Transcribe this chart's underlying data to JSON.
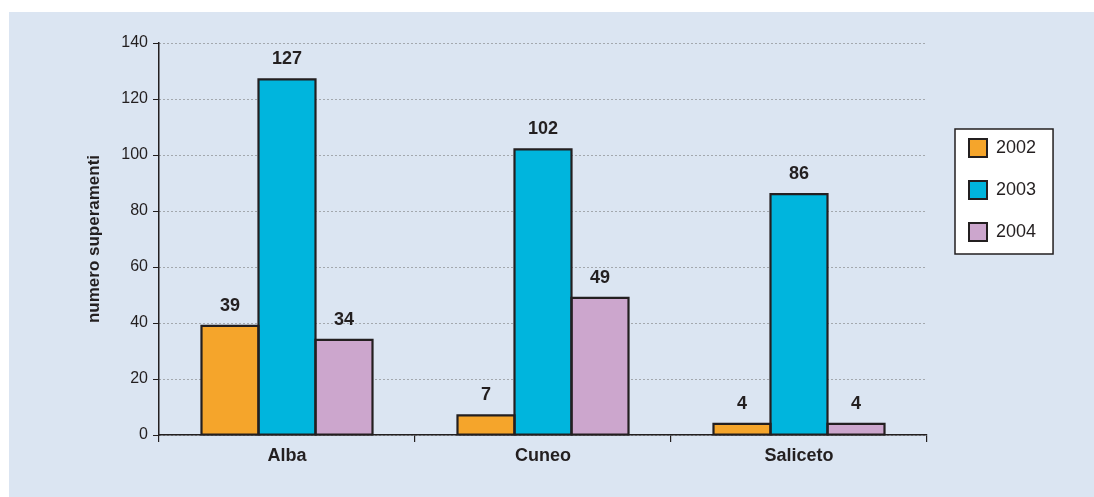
{
  "chart_data": {
    "type": "bar",
    "ylabel": "numero superamenti",
    "categories": [
      "Alba",
      "Cuneo",
      "Saliceto"
    ],
    "series": [
      {
        "name": "2002",
        "color": "#f5a52b",
        "values": [
          39,
          7,
          4
        ]
      },
      {
        "name": "2003",
        "color": "#00b5dd",
        "values": [
          127,
          102,
          86
        ]
      },
      {
        "name": "2004",
        "color": "#cca6cd",
        "values": [
          34,
          49,
          4
        ]
      }
    ],
    "ylim": [
      0,
      140
    ],
    "yticks": [
      0,
      20,
      40,
      60,
      80,
      100,
      120,
      140
    ],
    "grid": "y",
    "legend": "right",
    "data_labels": true
  }
}
